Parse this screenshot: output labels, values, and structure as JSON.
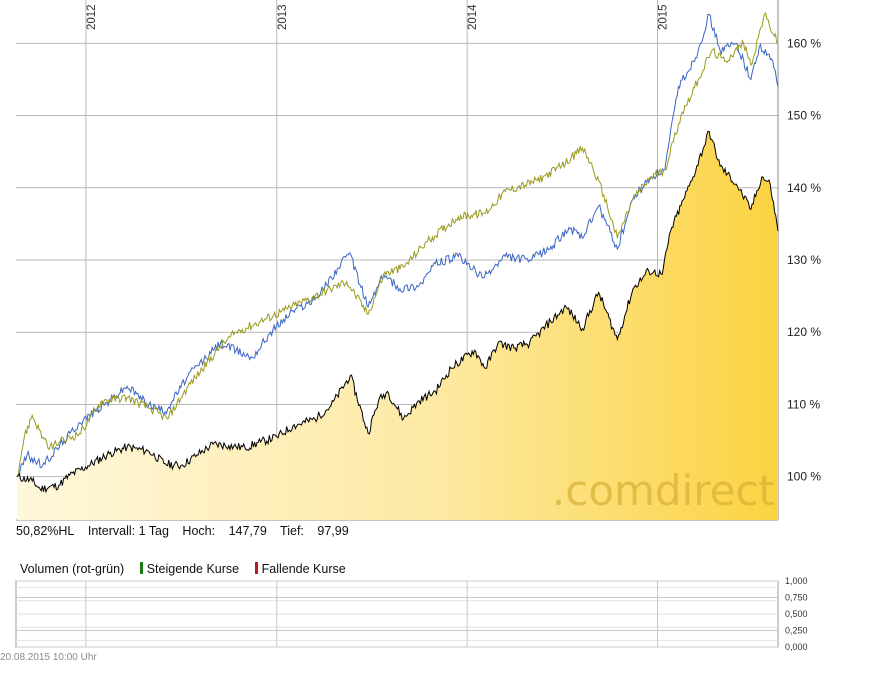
{
  "chart_data": {
    "type": "line",
    "years": [
      "2012",
      "2013",
      "2014",
      "2015"
    ],
    "y_ticks": [
      "100 %",
      "110 %",
      "120 %",
      "130 %",
      "140 %",
      "150 %",
      "160 %"
    ],
    "ylim": [
      94,
      166
    ],
    "x_range": [
      "2011-08-20",
      "2015-08-20"
    ],
    "watermark": ".comdirect",
    "grid": true,
    "series": [
      {
        "style": "filled area (black line)",
        "color": "#000000",
        "fill_color": "#fbd54a",
        "points": [
          [
            "2011-08-22",
            100
          ],
          [
            "2011-09-20",
            99.4
          ],
          [
            "2011-10-05",
            98.3
          ],
          [
            "2011-11-10",
            98.8
          ],
          [
            "2011-12-01",
            100.2
          ],
          [
            "2012-01-05",
            101.5
          ],
          [
            "2012-02-15",
            103.2
          ],
          [
            "2012-03-20",
            104.1
          ],
          [
            "2012-05-01",
            103.5
          ],
          [
            "2012-06-01",
            101.8
          ],
          [
            "2012-07-01",
            101.5
          ],
          [
            "2012-08-01",
            103.0
          ],
          [
            "2012-09-01",
            104.5
          ],
          [
            "2012-10-01",
            104.3
          ],
          [
            "2012-11-01",
            104.0
          ],
          [
            "2012-12-01",
            104.8
          ],
          [
            "2013-01-01",
            105.5
          ],
          [
            "2013-02-01",
            107.0
          ],
          [
            "2013-03-15",
            108.0
          ],
          [
            "2013-04-15",
            109.8
          ],
          [
            "2013-05-22",
            114.0
          ],
          [
            "2013-06-25",
            106.0
          ],
          [
            "2013-07-15",
            110.5
          ],
          [
            "2013-08-01",
            111.8
          ],
          [
            "2013-09-01",
            108.0
          ],
          [
            "2013-10-01",
            110.5
          ],
          [
            "2013-11-01",
            111.8
          ],
          [
            "2013-12-01",
            115.0
          ],
          [
            "2014-01-15",
            117.5
          ],
          [
            "2014-02-05",
            115.0
          ],
          [
            "2014-03-01",
            118.5
          ],
          [
            "2014-04-01",
            117.8
          ],
          [
            "2014-05-01",
            118.5
          ],
          [
            "2014-06-10",
            121.5
          ],
          [
            "2014-07-10",
            123.5
          ],
          [
            "2014-08-10",
            120.5
          ],
          [
            "2014-09-10",
            125.5
          ],
          [
            "2014-10-16",
            119.0
          ],
          [
            "2014-11-15",
            126.0
          ],
          [
            "2014-12-15",
            128.5
          ],
          [
            "2015-01-10",
            128.0
          ],
          [
            "2015-01-26",
            134.0
          ],
          [
            "2015-02-15",
            137.5
          ],
          [
            "2015-03-10",
            141.5
          ],
          [
            "2015-04-10",
            147.8
          ],
          [
            "2015-05-01",
            143.0
          ],
          [
            "2015-06-01",
            140.5
          ],
          [
            "2015-06-29",
            137.0
          ],
          [
            "2015-07-20",
            141.5
          ],
          [
            "2015-08-05",
            140.5
          ],
          [
            "2015-08-20",
            134.0
          ]
        ]
      },
      {
        "style": "line",
        "color": "#3b66c4",
        "points": [
          [
            "2011-08-22",
            100
          ],
          [
            "2011-09-10",
            103.0
          ],
          [
            "2011-10-10",
            101.5
          ],
          [
            "2011-11-20",
            105.0
          ],
          [
            "2011-12-20",
            107.5
          ],
          [
            "2012-02-15",
            110.5
          ],
          [
            "2012-03-20",
            112.5
          ],
          [
            "2012-05-01",
            110.0
          ],
          [
            "2012-06-01",
            109.0
          ],
          [
            "2012-07-15",
            114.0
          ],
          [
            "2012-09-15",
            118.5
          ],
          [
            "2012-10-15",
            117.5
          ],
          [
            "2012-11-15",
            116.5
          ],
          [
            "2012-12-20",
            120.0
          ],
          [
            "2013-02-01",
            123.0
          ],
          [
            "2013-03-15",
            124.5
          ],
          [
            "2013-05-20",
            131.0
          ],
          [
            "2013-06-25",
            123.5
          ],
          [
            "2013-07-25",
            128.0
          ],
          [
            "2013-08-25",
            126.0
          ],
          [
            "2013-10-01",
            126.5
          ],
          [
            "2013-11-01",
            129.5
          ],
          [
            "2013-12-15",
            130.5
          ],
          [
            "2014-02-01",
            127.5
          ],
          [
            "2014-03-15",
            130.5
          ],
          [
            "2014-05-01",
            130.0
          ],
          [
            "2014-06-15",
            132.0
          ],
          [
            "2014-07-15",
            134.5
          ],
          [
            "2014-08-10",
            133.0
          ],
          [
            "2014-09-10",
            137.5
          ],
          [
            "2014-10-16",
            131.5
          ],
          [
            "2014-11-15",
            138.5
          ],
          [
            "2014-12-20",
            141.5
          ],
          [
            "2015-01-15",
            142.5
          ],
          [
            "2015-02-10",
            154.0
          ],
          [
            "2015-03-15",
            158.0
          ],
          [
            "2015-04-10",
            164.0
          ],
          [
            "2015-05-01",
            159.0
          ],
          [
            "2015-06-01",
            160.0
          ],
          [
            "2015-06-29",
            155.0
          ],
          [
            "2015-07-15",
            159.5
          ],
          [
            "2015-08-10",
            157.5
          ],
          [
            "2015-08-20",
            154.0
          ]
        ]
      },
      {
        "style": "line",
        "color": "#9a9a1e",
        "points": [
          [
            "2011-08-22",
            100
          ],
          [
            "2011-09-05",
            105.5
          ],
          [
            "2011-09-20",
            108.5
          ],
          [
            "2011-10-20",
            104.0
          ],
          [
            "2011-11-20",
            105.0
          ],
          [
            "2011-12-20",
            106.0
          ],
          [
            "2012-02-01",
            110.5
          ],
          [
            "2012-03-20",
            111.0
          ],
          [
            "2012-05-01",
            109.5
          ],
          [
            "2012-06-05",
            108.0
          ],
          [
            "2012-07-15",
            112.5
          ],
          [
            "2012-09-15",
            118.0
          ],
          [
            "2012-10-15",
            120.0
          ],
          [
            "2012-12-01",
            121.5
          ],
          [
            "2013-01-15",
            123.0
          ],
          [
            "2013-03-15",
            125.0
          ],
          [
            "2013-05-15",
            127.0
          ],
          [
            "2013-06-25",
            122.5
          ],
          [
            "2013-07-25",
            128.0
          ],
          [
            "2013-09-01",
            129.0
          ],
          [
            "2013-10-15",
            132.5
          ],
          [
            "2013-12-15",
            136.0
          ],
          [
            "2014-02-05",
            136.5
          ],
          [
            "2014-03-15",
            139.5
          ],
          [
            "2014-05-15",
            141.0
          ],
          [
            "2014-07-01",
            143.0
          ],
          [
            "2014-08-10",
            145.5
          ],
          [
            "2014-08-25",
            143.5
          ],
          [
            "2014-09-20",
            139.0
          ],
          [
            "2014-10-16",
            133.0
          ],
          [
            "2014-11-15",
            138.5
          ],
          [
            "2014-12-20",
            141.5
          ],
          [
            "2015-01-15",
            142.5
          ],
          [
            "2015-02-15",
            150.0
          ],
          [
            "2015-03-20",
            155.0
          ],
          [
            "2015-04-15",
            159.0
          ],
          [
            "2015-05-10",
            157.5
          ],
          [
            "2015-06-15",
            160.0
          ],
          [
            "2015-06-29",
            157.0
          ],
          [
            "2015-07-25",
            164.0
          ],
          [
            "2015-08-20",
            160.0
          ]
        ]
      }
    ]
  },
  "info": {
    "perf": "50,82%HL",
    "interval": "Intervall: 1 Tag",
    "high_label": "Hoch:",
    "high_value": "147,79",
    "low_label": "Tief:",
    "low_value": "97,99"
  },
  "volume": {
    "title": "Volumen (rot-grün)",
    "rising": "Steigende Kurse",
    "rising_color": "#1a7a1a",
    "falling": "Fallende Kurse",
    "falling_color": "#c01818",
    "ticks": [
      "1,000",
      "0,750",
      "0,500",
      "0,250",
      "0,000"
    ]
  },
  "timestamp": "20.08.2015 10:00 Uhr"
}
